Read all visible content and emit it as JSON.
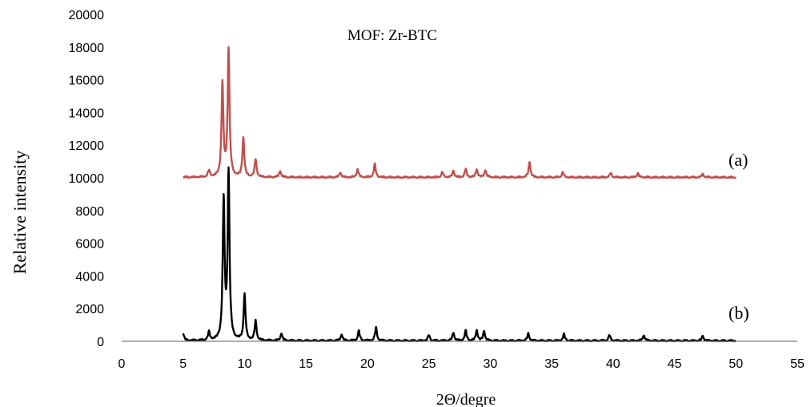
{
  "chart_data": {
    "type": "line",
    "title": "MOF: Zr-BTC",
    "xlabel": "2Θ/degre",
    "ylabel": "Relative intensity",
    "xlim": [
      0,
      55
    ],
    "ylim": [
      0,
      20000
    ],
    "x_ticks": [
      "0",
      "5",
      "10",
      "15",
      "20",
      "25",
      "30",
      "35",
      "40",
      "45",
      "50",
      "55"
    ],
    "y_ticks": [
      "0",
      "2000",
      "4000",
      "6000",
      "8000",
      "10000",
      "12000",
      "14000",
      "16000",
      "18000",
      "20000"
    ],
    "grid": false,
    "series": [
      {
        "name": "(a)",
        "color": "#c0504d",
        "baseline": 10000,
        "x_range": [
          5,
          50
        ],
        "peaks": [
          {
            "x": 7.1,
            "y": 10400
          },
          {
            "x": 8.2,
            "y": 15700
          },
          {
            "x": 8.7,
            "y": 17800
          },
          {
            "x": 9.9,
            "y": 12400
          },
          {
            "x": 10.9,
            "y": 11100
          },
          {
            "x": 12.9,
            "y": 10400
          },
          {
            "x": 17.8,
            "y": 10300
          },
          {
            "x": 19.2,
            "y": 10500
          },
          {
            "x": 20.6,
            "y": 10800
          },
          {
            "x": 26.1,
            "y": 10300
          },
          {
            "x": 27.0,
            "y": 10400
          },
          {
            "x": 28.0,
            "y": 10500
          },
          {
            "x": 28.9,
            "y": 10500
          },
          {
            "x": 29.6,
            "y": 10450
          },
          {
            "x": 33.2,
            "y": 10950
          },
          {
            "x": 35.9,
            "y": 10300
          },
          {
            "x": 39.8,
            "y": 10250
          },
          {
            "x": 42.0,
            "y": 10250
          },
          {
            "x": 47.3,
            "y": 10200
          }
        ]
      },
      {
        "name": "(b)",
        "color": "#000000",
        "baseline": 0,
        "x_range": [
          5,
          50
        ],
        "peaks": [
          {
            "x": 5.0,
            "y": 450
          },
          {
            "x": 7.1,
            "y": 500
          },
          {
            "x": 8.3,
            "y": 8500
          },
          {
            "x": 8.7,
            "y": 10200
          },
          {
            "x": 10.0,
            "y": 2800
          },
          {
            "x": 10.9,
            "y": 1200
          },
          {
            "x": 13.0,
            "y": 450
          },
          {
            "x": 17.9,
            "y": 400
          },
          {
            "x": 19.3,
            "y": 600
          },
          {
            "x": 20.7,
            "y": 800
          },
          {
            "x": 25.0,
            "y": 350
          },
          {
            "x": 27.0,
            "y": 500
          },
          {
            "x": 28.0,
            "y": 600
          },
          {
            "x": 28.9,
            "y": 650
          },
          {
            "x": 29.5,
            "y": 600
          },
          {
            "x": 33.1,
            "y": 450
          },
          {
            "x": 36.0,
            "y": 400
          },
          {
            "x": 39.7,
            "y": 350
          },
          {
            "x": 42.5,
            "y": 350
          },
          {
            "x": 47.3,
            "y": 300
          }
        ]
      }
    ]
  }
}
